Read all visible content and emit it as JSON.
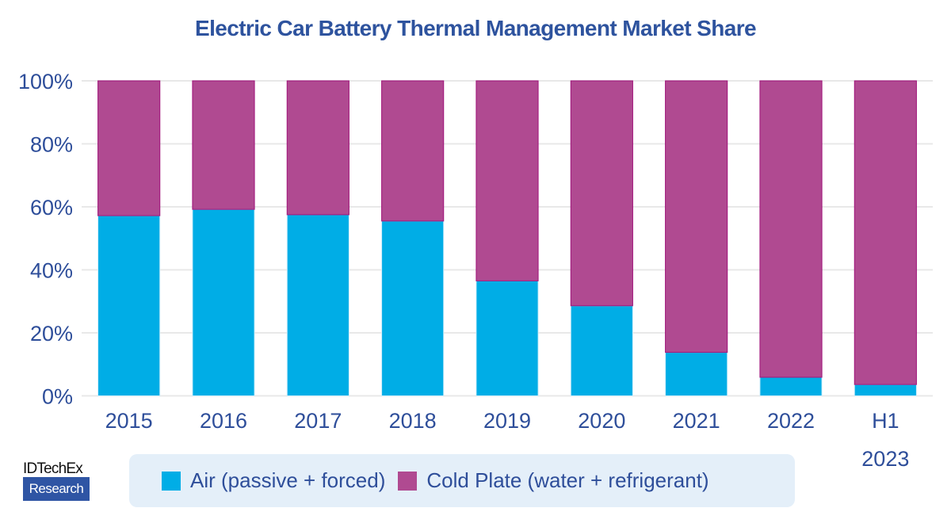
{
  "chart_data": {
    "type": "bar",
    "stacked": true,
    "title": "Electric Car Battery Thermal Management Market Share",
    "xlabel": "",
    "ylabel": "",
    "ylim": [
      0,
      100
    ],
    "yticks": [
      0,
      20,
      40,
      60,
      80,
      100
    ],
    "ytick_labels": [
      "0%",
      "20%",
      "40%",
      "60%",
      "80%",
      "100%"
    ],
    "grid": true,
    "categories": [
      "2015",
      "2016",
      "2017",
      "2018",
      "2019",
      "2020",
      "2021",
      "2022",
      "H1 2023"
    ],
    "category_label_lines": [
      [
        "2015"
      ],
      [
        "2016"
      ],
      [
        "2017"
      ],
      [
        "2018"
      ],
      [
        "2019"
      ],
      [
        "2020"
      ],
      [
        "2021"
      ],
      [
        "2022"
      ],
      [
        "H1",
        "2023"
      ]
    ],
    "series": [
      {
        "name": "Air (passive + forced)",
        "color": "#00ade6",
        "values": [
          57.2,
          59.2,
          57.5,
          55.5,
          36.5,
          28.6,
          13.8,
          5.9,
          3.6
        ]
      },
      {
        "name": "Cold Plate (water + refrigerant)",
        "color": "#b04a91",
        "values": [
          42.8,
          40.8,
          42.5,
          44.5,
          63.5,
          71.4,
          86.2,
          94.1,
          96.4
        ]
      }
    ],
    "legend_position": "bottom"
  },
  "logo": {
    "top": "IDTechEx",
    "bottom": "Research"
  }
}
